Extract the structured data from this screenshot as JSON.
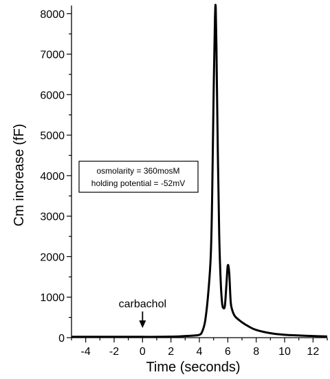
{
  "chart_data": {
    "type": "line",
    "xlabel": "Time (seconds)",
    "ylabel": "Cm increase (fF)",
    "xlim": [
      -5,
      13
    ],
    "ylim": [
      0,
      8200
    ],
    "xticks": [
      -4,
      -2,
      0,
      2,
      4,
      6,
      8,
      10,
      12
    ],
    "yticks": [
      0,
      1000,
      2000,
      3000,
      4000,
      5000,
      6000,
      7000,
      8000
    ],
    "grid": false,
    "info_box": {
      "lines": [
        "osmolarity = 360mosM",
        "holding potential = -52mV"
      ]
    },
    "annotation": {
      "text": "carbachol",
      "x": 0
    },
    "series": [
      {
        "x": [
          -5,
          -4,
          -3,
          -2,
          -1,
          0,
          1,
          2,
          2.5,
          3,
          3.5,
          4,
          4.2,
          4.4,
          4.6,
          4.8,
          4.9,
          5.0,
          5.1,
          5.15,
          5.2,
          5.3,
          5.4,
          5.5,
          5.6,
          5.7,
          5.8,
          5.9,
          6.0,
          6.1,
          6.2,
          6.3,
          6.5,
          7.0,
          7.5,
          8.0,
          9.0,
          10.0,
          11.0,
          12.0,
          13.0
        ],
        "y": [
          20,
          20,
          20,
          20,
          20,
          20,
          20,
          25,
          30,
          40,
          50,
          70,
          150,
          400,
          1000,
          2000,
          3500,
          6000,
          7900,
          8150,
          7200,
          4500,
          2500,
          1400,
          850,
          730,
          800,
          1300,
          1780,
          1600,
          900,
          700,
          530,
          380,
          270,
          190,
          110,
          70,
          55,
          40,
          30
        ]
      }
    ]
  }
}
